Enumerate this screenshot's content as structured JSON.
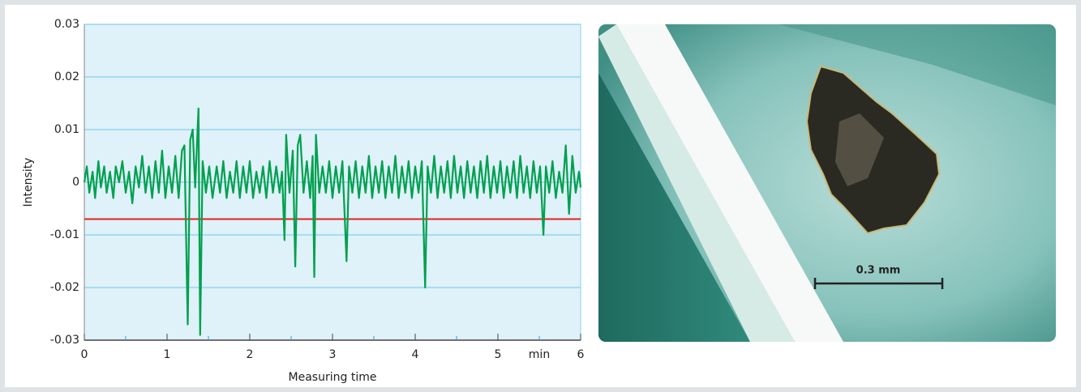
{
  "chart_data": {
    "type": "line",
    "y_label": "Intensity",
    "x_label": "Measuring time",
    "x_unit": "min",
    "x": [
      0,
      0.03,
      0.06,
      0.1,
      0.13,
      0.17,
      0.2,
      0.24,
      0.27,
      0.31,
      0.35,
      0.38,
      0.42,
      0.46,
      0.5,
      0.54,
      0.58,
      0.62,
      0.66,
      0.7,
      0.74,
      0.78,
      0.82,
      0.86,
      0.9,
      0.94,
      0.98,
      1.02,
      1.06,
      1.1,
      1.14,
      1.18,
      1.21,
      1.25,
      1.28,
      1.31,
      1.34,
      1.38,
      1.4,
      1.43,
      1.47,
      1.51,
      1.55,
      1.6,
      1.64,
      1.68,
      1.72,
      1.76,
      1.8,
      1.84,
      1.88,
      1.92,
      1.96,
      2.0,
      2.04,
      2.08,
      2.12,
      2.16,
      2.2,
      2.24,
      2.28,
      2.32,
      2.36,
      2.39,
      2.42,
      2.44,
      2.48,
      2.52,
      2.55,
      2.58,
      2.61,
      2.65,
      2.69,
      2.73,
      2.76,
      2.78,
      2.8,
      2.84,
      2.88,
      2.92,
      2.96,
      3.0,
      3.04,
      3.08,
      3.12,
      3.17,
      3.2,
      3.24,
      3.28,
      3.32,
      3.36,
      3.4,
      3.44,
      3.48,
      3.52,
      3.56,
      3.6,
      3.64,
      3.68,
      3.72,
      3.76,
      3.8,
      3.84,
      3.88,
      3.92,
      3.96,
      4.0,
      4.04,
      4.08,
      4.12,
      4.15,
      4.19,
      4.23,
      4.27,
      4.31,
      4.35,
      4.39,
      4.43,
      4.47,
      4.51,
      4.55,
      4.59,
      4.63,
      4.67,
      4.71,
      4.75,
      4.79,
      4.83,
      4.87,
      4.91,
      4.95,
      4.99,
      5.03,
      5.07,
      5.11,
      5.15,
      5.19,
      5.23,
      5.27,
      5.31,
      5.35,
      5.39,
      5.43,
      5.47,
      5.51,
      5.55,
      5.58,
      5.62,
      5.66,
      5.7,
      5.74,
      5.78,
      5.82,
      5.86,
      5.9,
      5.94,
      5.98,
      6.0
    ],
    "values": [
      0,
      0.003,
      -0.002,
      0.002,
      -0.003,
      0.004,
      -0.001,
      0.003,
      -0.002,
      0.002,
      -0.003,
      0.003,
      0,
      0.004,
      -0.002,
      0.002,
      -0.004,
      0.003,
      -0.001,
      0.005,
      -0.002,
      0.003,
      -0.003,
      0.004,
      -0.002,
      0.006,
      -0.003,
      0.003,
      -0.002,
      0.005,
      -0.003,
      0.006,
      0.007,
      -0.027,
      0.008,
      0.01,
      -0.001,
      0.014,
      -0.029,
      0.004,
      -0.002,
      0.003,
      -0.003,
      0.003,
      -0.002,
      0.004,
      -0.003,
      0.002,
      -0.002,
      0.004,
      -0.003,
      0.003,
      -0.002,
      0.004,
      -0.003,
      0.002,
      -0.002,
      0.003,
      -0.003,
      0.004,
      -0.002,
      0.003,
      -0.002,
      0.002,
      -0.011,
      0.009,
      -0.002,
      0.006,
      -0.016,
      0.007,
      0.009,
      -0.002,
      0.004,
      -0.003,
      0.005,
      -0.018,
      0.009,
      -0.002,
      0.003,
      -0.002,
      0.004,
      -0.003,
      0.003,
      -0.002,
      0.004,
      -0.015,
      0.003,
      -0.002,
      0.004,
      -0.003,
      0.003,
      -0.002,
      0.005,
      -0.003,
      0.003,
      -0.002,
      0.004,
      -0.003,
      0.003,
      -0.002,
      0.005,
      -0.003,
      0.003,
      -0.002,
      0.004,
      -0.003,
      0.003,
      -0.002,
      0.004,
      -0.02,
      0.003,
      -0.002,
      0.005,
      -0.003,
      0.003,
      -0.002,
      0.004,
      -0.003,
      0.005,
      -0.002,
      0.003,
      -0.003,
      0.004,
      -0.002,
      0.003,
      -0.003,
      0.004,
      -0.002,
      0.005,
      -0.003,
      0.003,
      -0.002,
      0.004,
      -0.003,
      0.003,
      -0.002,
      0.004,
      -0.003,
      0.005,
      -0.002,
      0.003,
      -0.003,
      0.004,
      -0.002,
      0.003,
      -0.01,
      0.003,
      -0.002,
      0.004,
      -0.003,
      0.002,
      -0.002,
      0.007,
      -0.006,
      0.005,
      -0.002,
      0.002,
      -0.001
    ],
    "color": "#00a04f",
    "threshold": -0.007,
    "threshold_color": "#e2231a",
    "xlim": [
      0,
      6
    ],
    "xticks": [
      0,
      1,
      2,
      3,
      4,
      5,
      6
    ],
    "xminorticks": [
      0.5,
      1.5,
      2.5,
      3.5,
      4.5,
      5.5
    ],
    "ylim": [
      -0.03,
      0.03
    ],
    "yticks": [
      -0.03,
      -0.02,
      -0.01,
      0,
      0.01,
      0.02,
      0.03
    ],
    "grid": true
  },
  "image": {
    "scale_bar_label": "0.3 mm"
  }
}
